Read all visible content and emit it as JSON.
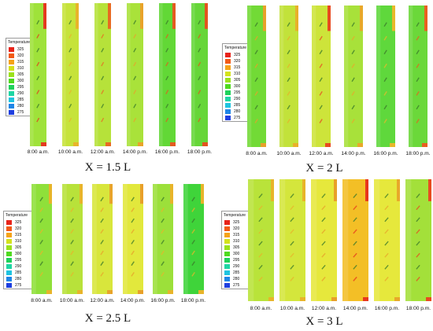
{
  "legend": {
    "title": "Temperature",
    "ticks": [
      {
        "value": "325",
        "color": "#e8231a"
      },
      {
        "value": "320",
        "color": "#f25a16"
      },
      {
        "value": "315",
        "color": "#f5a318"
      },
      {
        "value": "310",
        "color": "#d4e21c"
      },
      {
        "value": "305",
        "color": "#9be21c"
      },
      {
        "value": "300",
        "color": "#4fda1f"
      },
      {
        "value": "295",
        "color": "#1fd25a"
      },
      {
        "value": "290",
        "color": "#1fd6a4"
      },
      {
        "value": "285",
        "color": "#1fc4e0"
      },
      {
        "value": "280",
        "color": "#1f86e6"
      },
      {
        "value": "275",
        "color": "#1f3fe0"
      }
    ]
  },
  "panels": [
    {
      "caption": "X = 1.5 L",
      "times": [
        "8:00 a.m.",
        "10:00 a.m.",
        "12:00 a.m.",
        "14:00 p.m.",
        "16:00 p.m.",
        "18:00 p.m."
      ],
      "fills": [
        "#9fe23a",
        "#c6e33a",
        "#b6e23a",
        "#a9e23a",
        "#62d836",
        "#66d638"
      ],
      "accents": [
        "#e33a1e",
        "#e8b42a",
        "#e86a22",
        "#e8a32a",
        "#e35a20",
        "#e3541e"
      ]
    },
    {
      "caption": "X = 2 L",
      "times": [
        "8:00 a.m.",
        "10:00 a.m.",
        "12:00 a.m.",
        "14:00 p.m.",
        "16:00 p.m.",
        "18:00 p.m."
      ],
      "fills": [
        "#72da36",
        "#c2e23a",
        "#cde43a",
        "#a8e13a",
        "#5fd83c",
        "#6bd83a"
      ],
      "accents": [
        "#e8a02a",
        "#e8b02a",
        "#e84a20",
        "#e8a82a",
        "#e8b82a",
        "#e86020"
      ]
    },
    {
      "caption": "X = 2.5 L",
      "times": [
        "8:00 a.m.",
        "10:00 a.m.",
        "12:00 a.m.",
        "14:00 p.m.",
        "16:00 p.m.",
        "18:00 p.m."
      ],
      "fills": [
        "#8fe03a",
        "#b8e23a",
        "#d8e63c",
        "#e2e83c",
        "#9ce03a",
        "#3fd43a"
      ],
      "accents": [
        "#e8b42a",
        "#e8b42a",
        "#e8a42a",
        "#e8a02a",
        "#e8b42a",
        "#e8b42a"
      ]
    },
    {
      "caption": "X = 3 L",
      "times": [
        "8:00 a.m.",
        "10:00 a.m.",
        "12:00 a.m.",
        "14:00 p.m.",
        "16:00 p.m.",
        "18:00 p.m."
      ],
      "fills": [
        "#b9e33a",
        "#d4e63c",
        "#e6e83c",
        "#f3bf26",
        "#e6e83c",
        "#a3e03a"
      ],
      "accents": [
        "#e8b42a",
        "#e8b42a",
        "#e8a02a",
        "#e8361c",
        "#e8a82a",
        "#e84a20"
      ]
    }
  ]
}
